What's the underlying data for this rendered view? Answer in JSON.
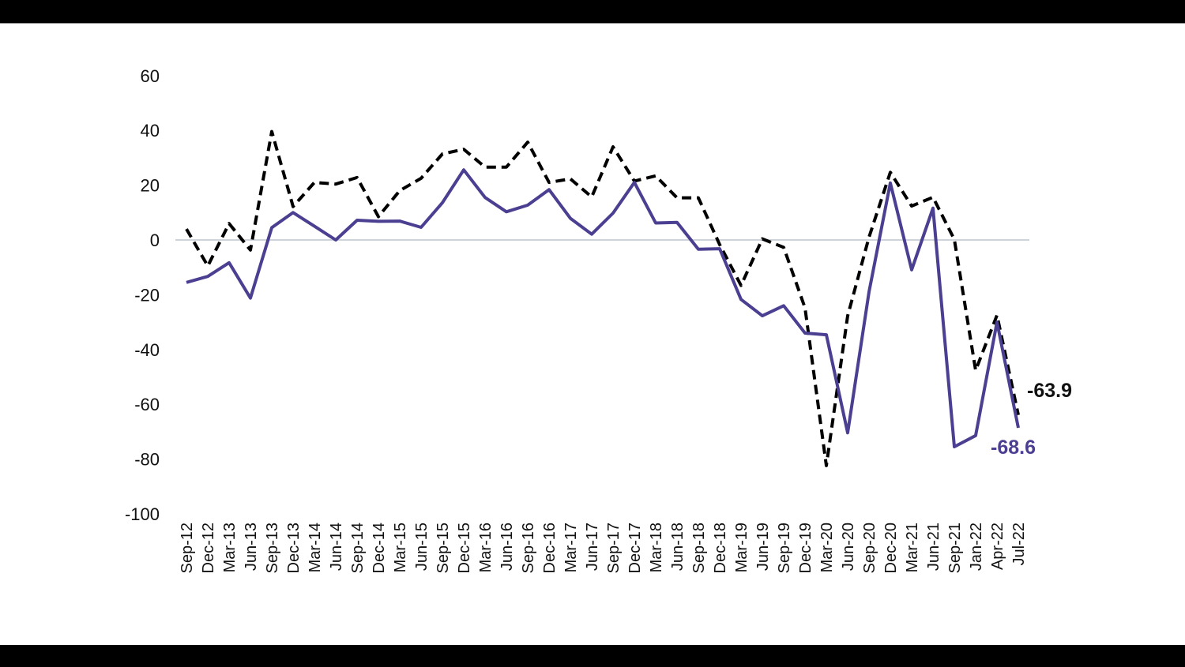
{
  "chart_data": {
    "type": "line",
    "title": "",
    "xlabel": "",
    "ylabel": "",
    "ylim": [
      -100,
      60
    ],
    "yticks": [
      60,
      40,
      20,
      0,
      -20,
      -40,
      -60,
      -80,
      -100
    ],
    "grid": "zero line only",
    "legend": "none",
    "categories": [
      "Sep-12",
      "Dec-12",
      "Mar-13",
      "Jun-13",
      "Sep-13",
      "Dec-13",
      "Mar-14",
      "Jun-14",
      "Sep-14",
      "Dec-14",
      "Mar-15",
      "Jun-15",
      "Sep-15",
      "Dec-15",
      "Mar-16",
      "Jun-16",
      "Sep-16",
      "Dec-16",
      "Mar-17",
      "Jun-17",
      "Sep-17",
      "Dec-17",
      "Mar-18",
      "Jun-18",
      "Sep-18",
      "Dec-18",
      "Mar-19",
      "Jun-19",
      "Sep-19",
      "Dec-19",
      "Mar-20",
      "Jun-20",
      "Sep-20",
      "Dec-20",
      "Mar-21",
      "Jun-21",
      "Sep-21",
      "Jan-22",
      "Apr-22",
      "Jul-22"
    ],
    "series": [
      {
        "name": "dashed-series",
        "style": "dashed",
        "color": "#000000",
        "values": [
          4,
          -9.5,
          6,
          -3.7,
          39.6,
          12.2,
          21,
          20.4,
          22.8,
          8.5,
          18,
          22.5,
          31.4,
          33.1,
          26.6,
          26.6,
          35.7,
          21,
          22.3,
          15.7,
          34,
          21.5,
          23.4,
          15.4,
          15.4,
          -1.7,
          -16.6,
          0.4,
          -2.7,
          -24.8,
          -82.4,
          -27.7,
          1,
          24.7,
          12.4,
          15.6,
          0.2,
          -47.6,
          -27.5,
          -63.9
        ],
        "end_label": "-63.9"
      },
      {
        "name": "solid-series",
        "style": "solid",
        "color": "#4b3f91",
        "values": [
          -15.5,
          -13.3,
          -8.3,
          -21.2,
          4.5,
          10,
          5,
          0,
          7.2,
          6.8,
          6.9,
          4.6,
          13.6,
          25.6,
          15.5,
          10.3,
          12.7,
          18.4,
          7.9,
          2.1,
          9.8,
          21,
          6.2,
          6.4,
          -3.4,
          -3.2,
          -21.7,
          -27.7,
          -24,
          -34,
          -34.6,
          -70.4,
          -19,
          20.8,
          -10.9,
          11.6,
          -75.5,
          -71.4,
          -30,
          -68.6
        ],
        "end_label": "-68.6"
      }
    ]
  }
}
